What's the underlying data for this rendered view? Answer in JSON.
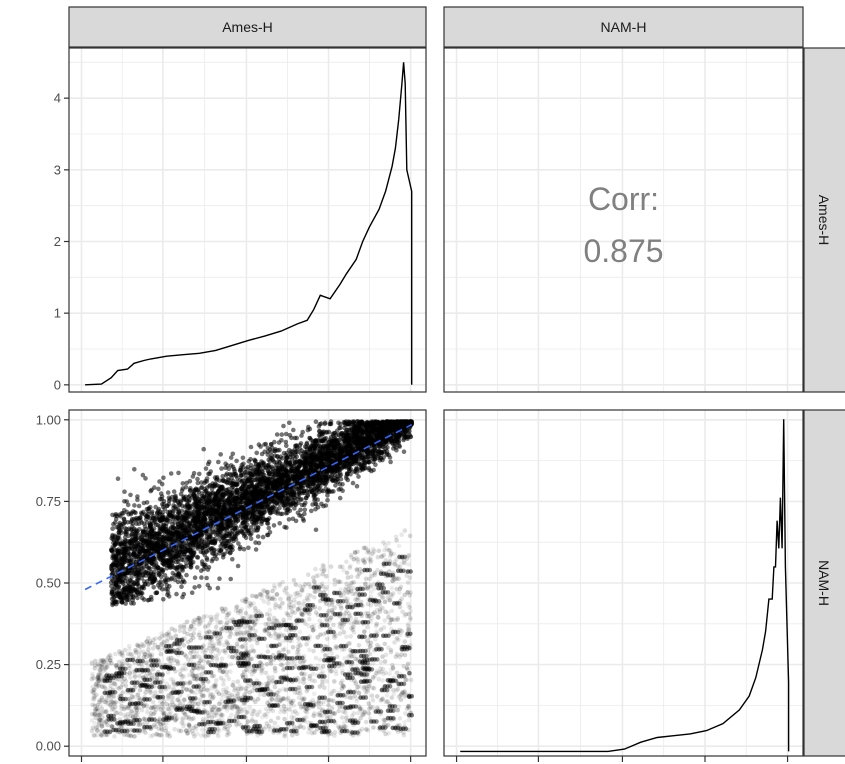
{
  "strips": {
    "col1": "Ames-H",
    "col2": "NAM-H",
    "row1": "Ames-H",
    "row2": "NAM-H"
  },
  "corr": {
    "label": "Corr:",
    "value": "0.875"
  },
  "colors": {
    "strip_fill": "#d9d9d9",
    "panel_border": "#333333",
    "grid": "#ebebeb",
    "point": "#000000",
    "fit_line": "#3366ff",
    "density_line": "#000000",
    "corr_text": "#808080"
  },
  "chart_data": [
    {
      "type": "line",
      "panel": "Ames-H diagonal density",
      "x": [
        0.0,
        0.05,
        0.08,
        0.1,
        0.13,
        0.15,
        0.18,
        0.2,
        0.25,
        0.3,
        0.35,
        0.4,
        0.45,
        0.5,
        0.55,
        0.6,
        0.65,
        0.68,
        0.7,
        0.72,
        0.75,
        0.78,
        0.8,
        0.83,
        0.85,
        0.87,
        0.9,
        0.92,
        0.94,
        0.95,
        0.96,
        0.97,
        0.975,
        0.98,
        0.985,
        1.0,
        1.0
      ],
      "y": [
        0.0,
        0.01,
        0.1,
        0.2,
        0.22,
        0.3,
        0.34,
        0.36,
        0.4,
        0.42,
        0.44,
        0.48,
        0.55,
        0.62,
        0.68,
        0.75,
        0.85,
        0.9,
        1.05,
        1.25,
        1.2,
        1.4,
        1.55,
        1.75,
        2.0,
        2.2,
        2.45,
        2.7,
        3.05,
        3.3,
        3.7,
        4.2,
        4.5,
        4.2,
        3.0,
        2.7,
        0.0
      ],
      "ylim": [
        -0.1,
        4.7
      ],
      "y_ticks": [
        0,
        1,
        2,
        3,
        4
      ],
      "y_tick_labels": [
        "0",
        "1",
        "2",
        "3",
        "4"
      ]
    },
    {
      "type": "scatter",
      "panel": "Ames-H vs NAM-H",
      "ylim": [
        -0.03,
        1.03
      ],
      "y_ticks": [
        0.0,
        0.25,
        0.5,
        0.75,
        1.0
      ],
      "y_tick_labels": [
        "0.00",
        "0.25",
        "0.50",
        "0.75",
        "1.00"
      ],
      "fit_line": {
        "x": [
          0.0,
          1.0
        ],
        "y": [
          0.48,
          0.985
        ],
        "style": "dashed"
      }
    },
    {
      "type": "line",
      "panel": "NAM-H diagonal density",
      "x": [
        0.0,
        0.45,
        0.5,
        0.55,
        0.6,
        0.65,
        0.7,
        0.75,
        0.8,
        0.85,
        0.88,
        0.9,
        0.92,
        0.93,
        0.94,
        0.95,
        0.955,
        0.96,
        0.965,
        0.97,
        0.975,
        0.98,
        0.985,
        0.99,
        1.0,
        1.0
      ],
      "y": [
        0.0,
        0.0,
        0.05,
        0.2,
        0.3,
        0.34,
        0.38,
        0.45,
        0.6,
        0.9,
        1.2,
        1.6,
        2.2,
        2.6,
        3.3,
        3.3,
        4.0,
        4.0,
        5.0,
        4.4,
        5.5,
        4.4,
        7.2,
        4.0,
        1.5,
        0.0
      ],
      "ylim": [
        -0.1,
        7.4
      ]
    }
  ]
}
